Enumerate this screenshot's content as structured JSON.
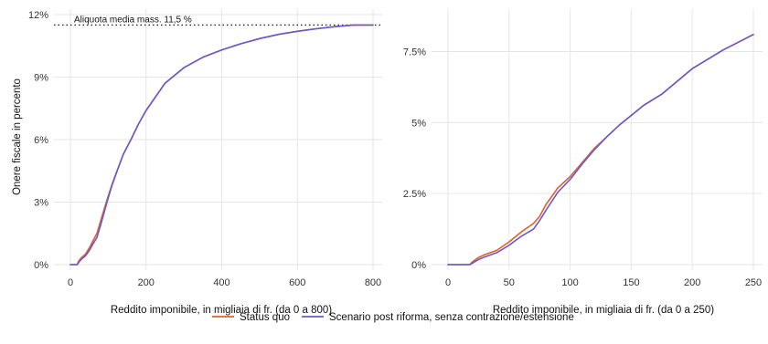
{
  "colors": {
    "status_quo": "#e0602a",
    "reform": "#6a5acd",
    "grid": "#e6e6e6",
    "reference": "#222222"
  },
  "legend": {
    "status_quo_label": "Status quo",
    "reform_label": "Scenario post riforma, senza contrazione/estensione"
  },
  "chart_data": [
    {
      "type": "line",
      "ylabel": "Onere fiscale in percento",
      "xlabel": "Reddito imponibile, in migliaia di fr. (da 0 a 800)",
      "xlim": [
        0,
        800
      ],
      "ylim": [
        0,
        12
      ],
      "x_ticks": [
        0,
        200,
        400,
        600,
        800
      ],
      "x_tick_labels": [
        "0",
        "200",
        "400",
        "600",
        "800"
      ],
      "y_ticks": [
        0,
        3,
        6,
        9,
        12
      ],
      "y_tick_labels": [
        "0%",
        "3%",
        "6%",
        "9%",
        "12%"
      ],
      "grid": true,
      "reference_line": {
        "y": 11.5,
        "label": "Aliquota media mass. 11,5 %"
      },
      "series": [
        {
          "name": "Status quo",
          "x": [
            0,
            18,
            20,
            25,
            30,
            40,
            50,
            60,
            70,
            80,
            90,
            100,
            110,
            120,
            140,
            160,
            180,
            200,
            250,
            300,
            350,
            400,
            450,
            500,
            550,
            600,
            650,
            700,
            750,
            800
          ],
          "y": [
            0,
            0,
            0.1,
            0.25,
            0.35,
            0.5,
            0.8,
            1.15,
            1.5,
            2.1,
            2.7,
            3.3,
            3.85,
            4.35,
            5.3,
            6.0,
            6.75,
            7.4,
            8.7,
            9.45,
            9.95,
            10.3,
            10.6,
            10.85,
            11.05,
            11.2,
            11.32,
            11.42,
            11.5,
            11.5
          ]
        },
        {
          "name": "Scenario post riforma, senza contrazione/estensione",
          "x": [
            0,
            18,
            20,
            25,
            30,
            40,
            50,
            60,
            70,
            80,
            90,
            100,
            110,
            120,
            140,
            160,
            180,
            200,
            250,
            300,
            350,
            400,
            450,
            500,
            550,
            600,
            650,
            700,
            750,
            800
          ],
          "y": [
            0,
            0,
            0.05,
            0.18,
            0.27,
            0.42,
            0.68,
            1.0,
            1.3,
            1.9,
            2.55,
            3.2,
            3.8,
            4.32,
            5.3,
            6.0,
            6.75,
            7.4,
            8.7,
            9.45,
            9.95,
            10.3,
            10.6,
            10.85,
            11.05,
            11.2,
            11.32,
            11.42,
            11.5,
            11.5
          ]
        }
      ]
    },
    {
      "type": "line",
      "ylabel": "",
      "xlabel": "Reddito imponibile, in migliaia di fr. (da 0 a 250)",
      "xlim": [
        0,
        250
      ],
      "ylim": [
        0,
        8.8
      ],
      "x_ticks": [
        0,
        50,
        100,
        150,
        200,
        250
      ],
      "x_tick_labels": [
        "0",
        "50",
        "100",
        "150",
        "200",
        "250"
      ],
      "y_ticks": [
        0,
        2.5,
        5,
        7.5
      ],
      "y_tick_labels": [
        "0%",
        "2.5%",
        "5%",
        "7.5%"
      ],
      "grid": true,
      "series": [
        {
          "name": "Status quo",
          "x": [
            0,
            18,
            20,
            25,
            30,
            40,
            50,
            60,
            70,
            75,
            80,
            90,
            100,
            110,
            120,
            130,
            140,
            150,
            160,
            175,
            200,
            225,
            250
          ],
          "y": [
            0,
            0,
            0.1,
            0.25,
            0.35,
            0.5,
            0.8,
            1.15,
            1.45,
            1.7,
            2.1,
            2.7,
            3.1,
            3.6,
            4.1,
            4.5,
            4.9,
            5.25,
            5.6,
            6.0,
            6.9,
            7.55,
            8.1
          ]
        },
        {
          "name": "Scenario post riforma, senza contrazione/estensione",
          "x": [
            0,
            18,
            20,
            25,
            30,
            40,
            50,
            60,
            70,
            75,
            80,
            90,
            100,
            110,
            120,
            130,
            140,
            150,
            160,
            175,
            200,
            225,
            250
          ],
          "y": [
            0,
            0,
            0.05,
            0.18,
            0.27,
            0.42,
            0.68,
            1.0,
            1.25,
            1.55,
            1.9,
            2.55,
            3.0,
            3.55,
            4.05,
            4.5,
            4.9,
            5.25,
            5.6,
            6.0,
            6.9,
            7.55,
            8.1
          ]
        }
      ]
    }
  ]
}
